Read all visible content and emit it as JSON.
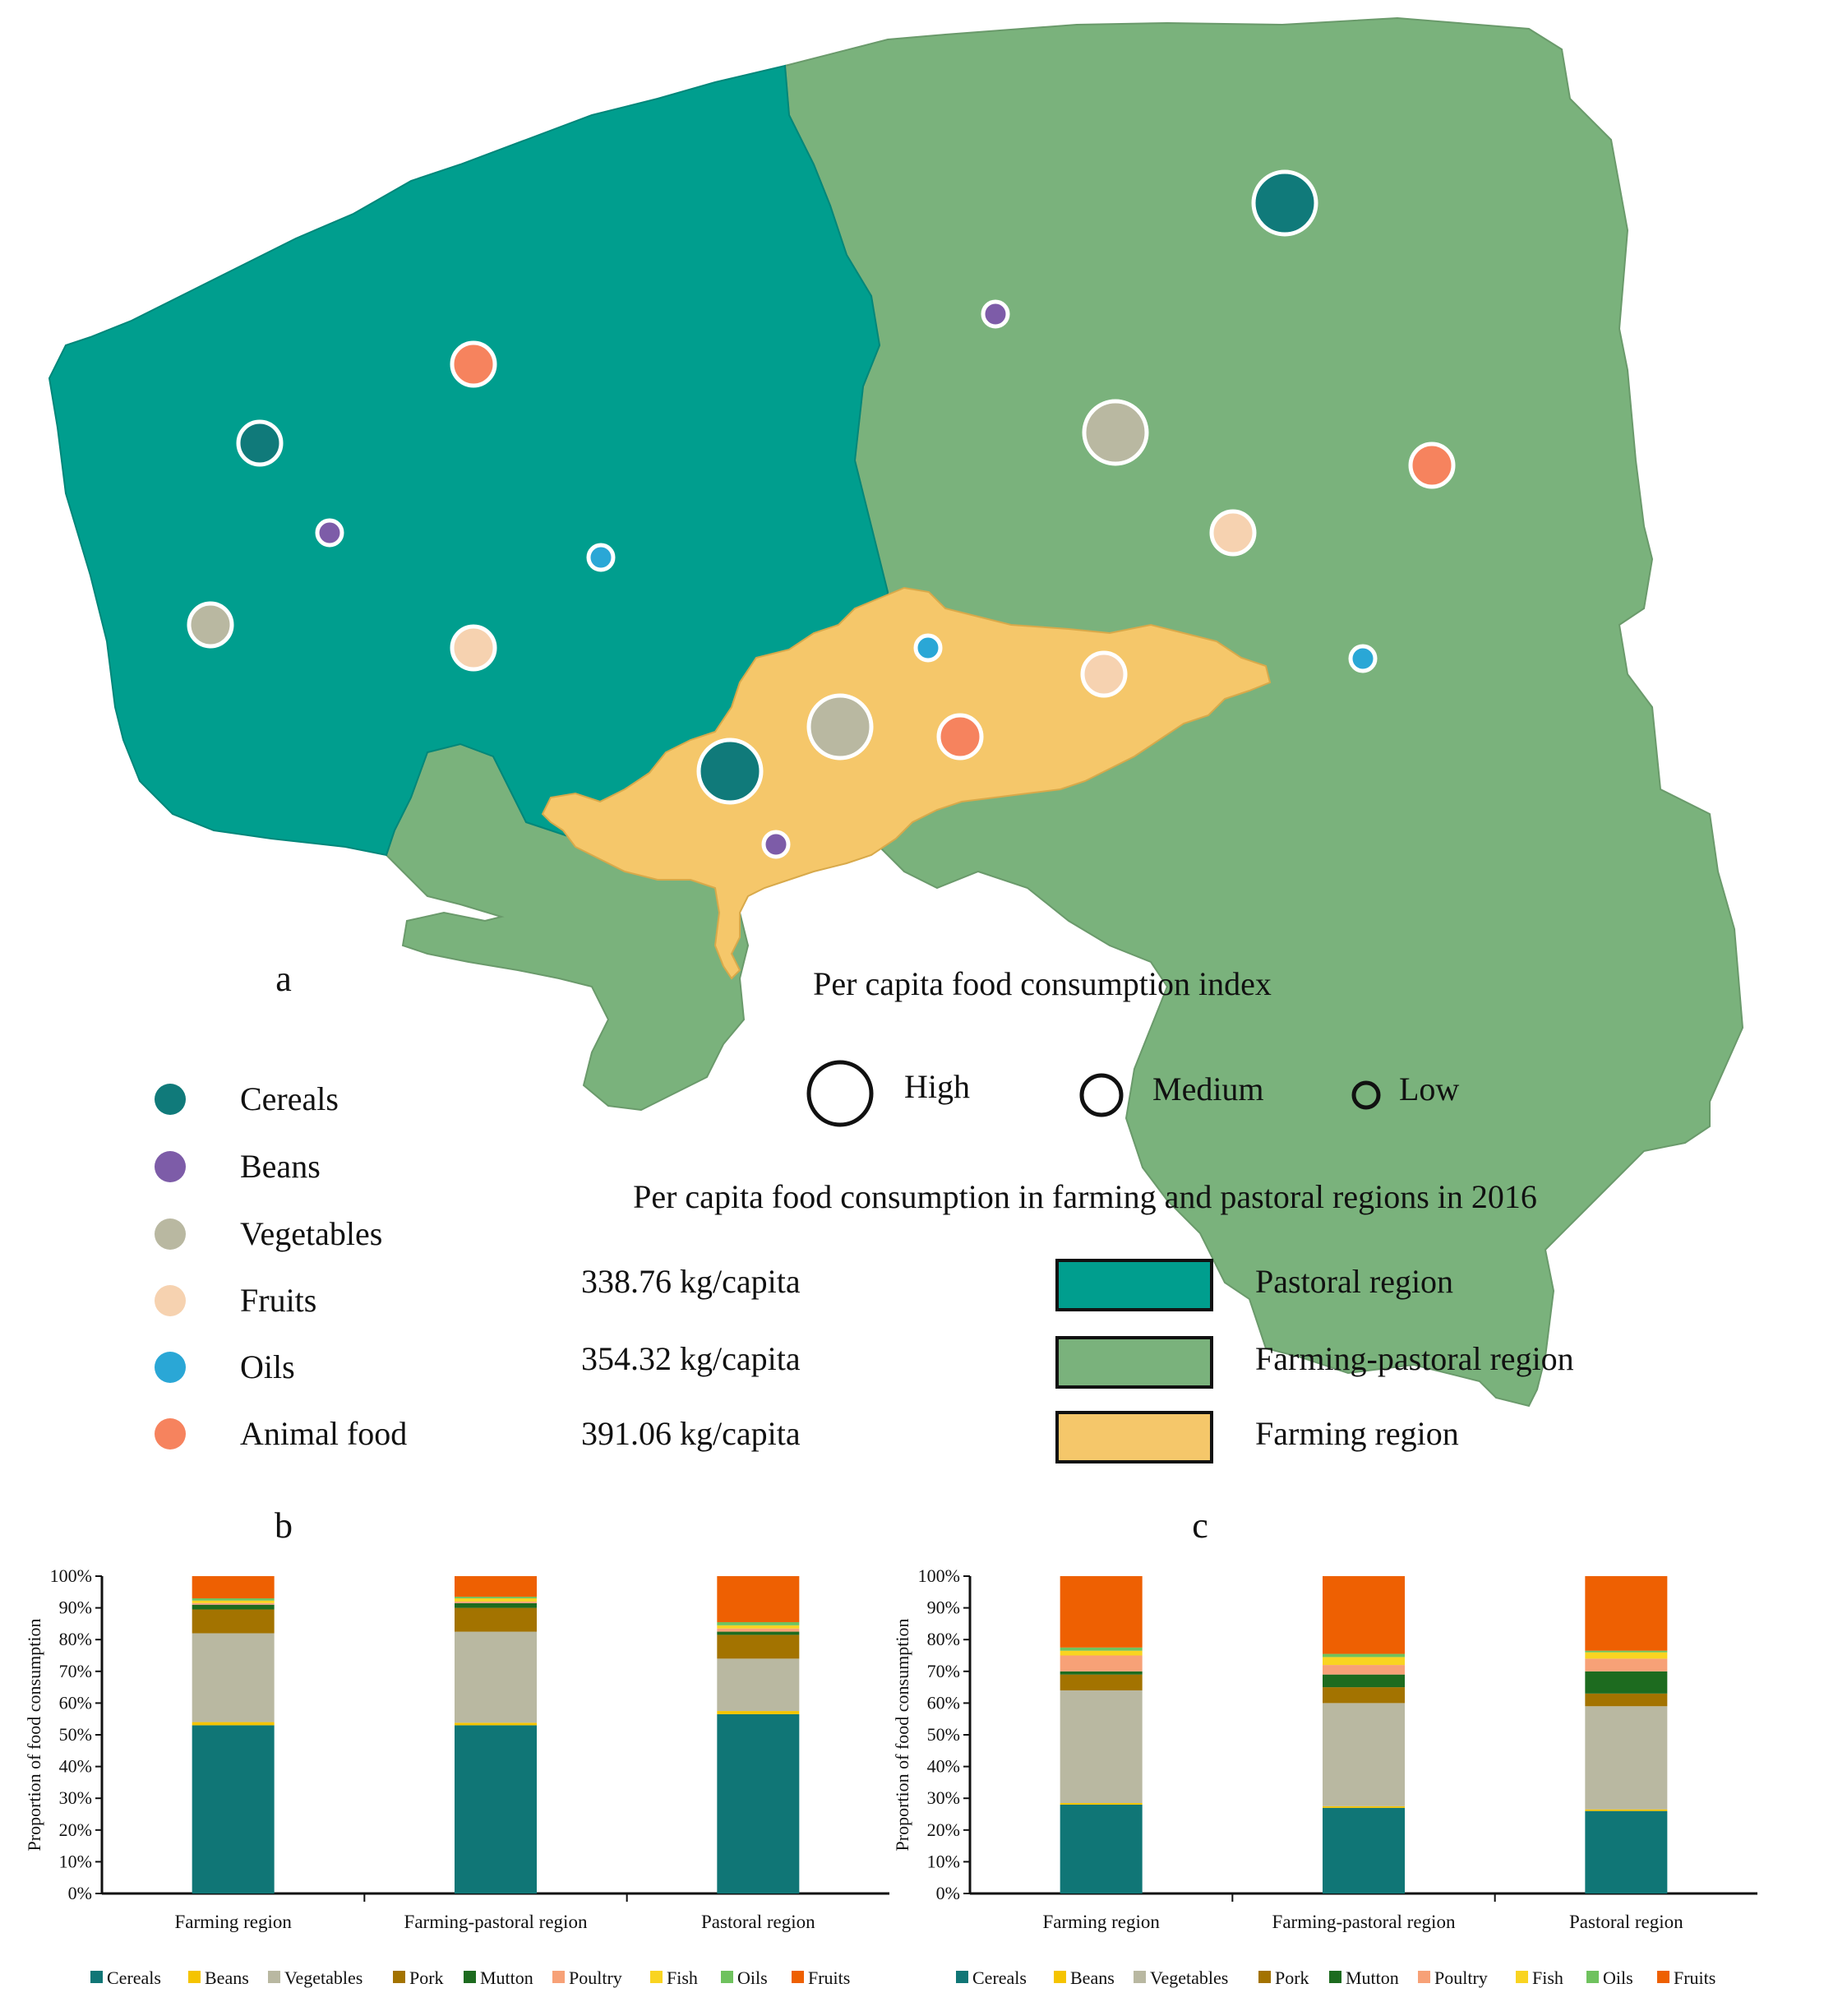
{
  "panel_labels": {
    "a": "a",
    "b": "b",
    "c": "c"
  },
  "colors": {
    "pastoral": "#009e8e",
    "farming_pastoral": "#7ab27c",
    "farming": "#f5c76a",
    "cereals": "#107a7a",
    "beans": "#7d5ca8",
    "vegetables": "#b9b8a1",
    "fruits": "#f6d2b0",
    "oils": "#2aa7d6",
    "animal_food": "#f6835e",
    "bar": {
      "Cereals": "#107676",
      "Beans": "#f5c400",
      "Vegetables": "#b9b8a1",
      "Pork": "#a37300",
      "Mutton": "#1d6b1f",
      "Poultry": "#f7a177",
      "Fish": "#f9d421",
      "Oils": "#6fc25e",
      "Fruits": "#ee6002"
    }
  },
  "map": {
    "regions": [
      {
        "name": "Pastoral region"
      },
      {
        "name": "Farming-pastoral region"
      },
      {
        "name": "Farming region"
      }
    ],
    "symbols": [
      {
        "region": "Pastoral region",
        "food": "Cereals",
        "level": "Medium"
      },
      {
        "region": "Pastoral region",
        "food": "Beans",
        "level": "Low"
      },
      {
        "region": "Pastoral region",
        "food": "Vegetables",
        "level": "Medium"
      },
      {
        "region": "Pastoral region",
        "food": "Fruits",
        "level": "Medium"
      },
      {
        "region": "Pastoral region",
        "food": "Oils",
        "level": "Low"
      },
      {
        "region": "Pastoral region",
        "food": "Animal food",
        "level": "Medium"
      },
      {
        "region": "Farming-pastoral region",
        "food": "Cereals",
        "level": "High"
      },
      {
        "region": "Farming-pastoral region",
        "food": "Beans",
        "level": "Low"
      },
      {
        "region": "Farming-pastoral region",
        "food": "Vegetables",
        "level": "High"
      },
      {
        "region": "Farming-pastoral region",
        "food": "Fruits",
        "level": "Medium"
      },
      {
        "region": "Farming-pastoral region",
        "food": "Oils",
        "level": "Low"
      },
      {
        "region": "Farming-pastoral region",
        "food": "Animal food",
        "level": "Medium"
      },
      {
        "region": "Farming region",
        "food": "Cereals",
        "level": "High"
      },
      {
        "region": "Farming region",
        "food": "Beans",
        "level": "Low"
      },
      {
        "region": "Farming region",
        "food": "Vegetables",
        "level": "High"
      },
      {
        "region": "Farming region",
        "food": "Fruits",
        "level": "Medium"
      },
      {
        "region": "Farming region",
        "food": "Oils",
        "level": "Low"
      },
      {
        "region": "Farming region",
        "food": "Animal food",
        "level": "Medium"
      }
    ]
  },
  "food_legend": [
    "Cereals",
    "Beans",
    "Vegetables",
    "Fruits",
    "Oils",
    "Animal food"
  ],
  "index_legend": {
    "title": "Per capita food consumption index",
    "items": [
      "High",
      "Medium",
      "Low"
    ]
  },
  "consumption": {
    "title": "Per capita food consumption in farming and pastoral regions in 2016",
    "rows": [
      {
        "value": "338.76 kg/capita",
        "region": "Pastoral region"
      },
      {
        "value": "354.32 kg/capita",
        "region": "Farming-pastoral region"
      },
      {
        "value": "391.06 kg/capita",
        "region": "Farming region"
      }
    ]
  },
  "chart_data": [
    {
      "type": "bar",
      "stacked": true,
      "ylabel": "Proportion of food consumption",
      "yticks": [
        "0%",
        "10%",
        "20%",
        "30%",
        "40%",
        "50%",
        "60%",
        "70%",
        "80%",
        "90%",
        "100%"
      ],
      "ylim": [
        0,
        100
      ],
      "categories": [
        "Farming region",
        "Farming-pastoral region",
        "Pastoral region"
      ],
      "series": [
        {
          "name": "Cereals",
          "values": [
            53,
            53,
            56.5
          ]
        },
        {
          "name": "Beans",
          "values": [
            1,
            0.8,
            1
          ]
        },
        {
          "name": "Vegetables",
          "values": [
            28,
            28.7,
            16.5
          ]
        },
        {
          "name": "Pork",
          "values": [
            7.5,
            7.5,
            7.5
          ]
        },
        {
          "name": "Mutton",
          "values": [
            1.5,
            1.5,
            1
          ]
        },
        {
          "name": "Poultry",
          "values": [
            0.5,
            0.5,
            1
          ]
        },
        {
          "name": "Fish",
          "values": [
            0.8,
            1,
            1
          ]
        },
        {
          "name": "Oils",
          "values": [
            0.7,
            0.5,
            1
          ]
        },
        {
          "name": "Fruits",
          "values": [
            7,
            6.5,
            14.5
          ]
        }
      ]
    },
    {
      "type": "bar",
      "stacked": true,
      "ylabel": "Proportion of food consumption",
      "yticks": [
        "0%",
        "10%",
        "20%",
        "30%",
        "40%",
        "50%",
        "60%",
        "70%",
        "80%",
        "90%",
        "100%"
      ],
      "ylim": [
        0,
        100
      ],
      "categories": [
        "Farming region",
        "Farming-pastoral region",
        "Pastoral region"
      ],
      "series": [
        {
          "name": "Cereals",
          "values": [
            28,
            27,
            26
          ]
        },
        {
          "name": "Beans",
          "values": [
            0.5,
            0.5,
            0.5
          ]
        },
        {
          "name": "Vegetables",
          "values": [
            35.5,
            32.5,
            32.5
          ]
        },
        {
          "name": "Pork",
          "values": [
            5,
            5,
            4
          ]
        },
        {
          "name": "Mutton",
          "values": [
            1,
            4,
            7
          ]
        },
        {
          "name": "Poultry",
          "values": [
            5,
            3,
            4
          ]
        },
        {
          "name": "Fish",
          "values": [
            1.5,
            2.5,
            2
          ]
        },
        {
          "name": "Oils",
          "values": [
            1,
            1,
            0.5
          ]
        },
        {
          "name": "Fruits",
          "values": [
            22.5,
            24.5,
            23.5
          ]
        }
      ]
    }
  ]
}
